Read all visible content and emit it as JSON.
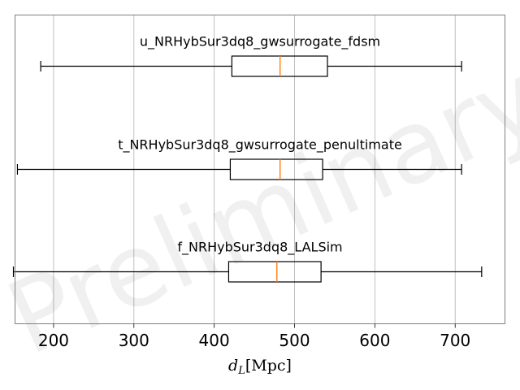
{
  "chart_data": {
    "type": "boxplot",
    "orientation": "horizontal",
    "xlabel_main": "d",
    "xlabel_sub": "L",
    "xlabel_unit": "[Mpc]",
    "xlim": [
      152,
      762
    ],
    "xticks": [
      200,
      300,
      400,
      500,
      600,
      700
    ],
    "grid": "vertical",
    "watermark": "Preliminary",
    "colors": {
      "box": "#000000",
      "median": "#ff7f0e",
      "grid": "#b0b0b0",
      "frame": "#808080"
    },
    "series": [
      {
        "name": "u_NRHybSur3dq8_gwsurrogate_fdsm",
        "whisker_low": 184,
        "q1": 422,
        "median": 482,
        "q3": 541,
        "whisker_high": 708
      },
      {
        "name": "t_NRHybSur3dq8_gwsurrogate_penultimate",
        "whisker_low": 155,
        "q1": 420,
        "median": 482,
        "q3": 535,
        "whisker_high": 708
      },
      {
        "name": "f_NRHybSur3dq8_LALSim",
        "whisker_low": 150,
        "q1": 418,
        "median": 478,
        "q3": 533,
        "whisker_high": 733
      }
    ]
  }
}
